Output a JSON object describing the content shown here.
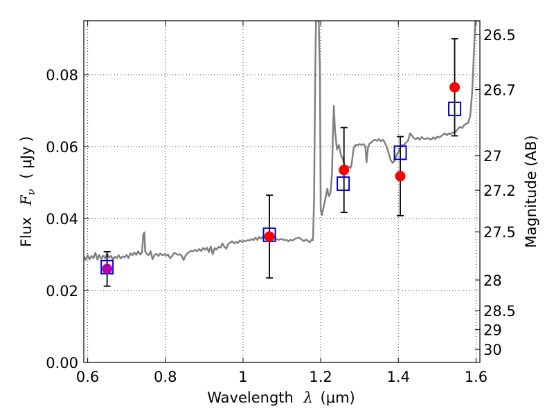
{
  "chart_data": {
    "type": "scatter",
    "title": "",
    "xlabel": {
      "prefix": "Wavelength",
      "symbol": "λ",
      "unit": "(μm)"
    },
    "ylabel": {
      "prefix": "Flux",
      "symbol": "F",
      "subscript": "ν",
      "unit": "( μJy )"
    },
    "y2label": "Magnitude (AB)",
    "xlim": [
      0.59,
      1.61
    ],
    "ylim": [
      0.0,
      0.095
    ],
    "x_ticks": [
      0.6,
      0.8,
      1.0,
      1.2,
      1.4,
      1.6
    ],
    "x_tick_labels": [
      "0.6",
      "0.8",
      "1",
      "1.2",
      "1.4",
      "1.6"
    ],
    "y_ticks": [
      0.0,
      0.02,
      0.04,
      0.06,
      0.08
    ],
    "y_tick_labels": [
      "0.00",
      "0.02",
      "0.04",
      "0.06",
      "0.08"
    ],
    "y2_ticks": [
      {
        "label": "26.5",
        "mag": 26.5
      },
      {
        "label": "26.7",
        "mag": 26.7
      },
      {
        "label": "27",
        "mag": 27.0
      },
      {
        "label": "27.2",
        "mag": 27.2
      },
      {
        "label": "27.5",
        "mag": 27.5
      },
      {
        "label": "28",
        "mag": 28.0
      },
      {
        "label": "28.5",
        "mag": 28.5
      },
      {
        "label": "29",
        "mag": 29.0
      },
      {
        "label": "30",
        "mag": 30.0
      }
    ],
    "grid": true,
    "model_spectrum": {
      "color": "#808080",
      "points": [
        [
          0.59,
          0.0295
        ],
        [
          0.595,
          0.0285
        ],
        [
          0.6,
          0.0298
        ],
        [
          0.605,
          0.0287
        ],
        [
          0.61,
          0.0296
        ],
        [
          0.615,
          0.029
        ],
        [
          0.62,
          0.0305
        ],
        [
          0.625,
          0.0286
        ],
        [
          0.63,
          0.0299
        ],
        [
          0.635,
          0.0288
        ],
        [
          0.64,
          0.0297
        ],
        [
          0.645,
          0.029
        ],
        [
          0.65,
          0.0302
        ],
        [
          0.655,
          0.0292
        ],
        [
          0.66,
          0.0296
        ],
        [
          0.665,
          0.0287
        ],
        [
          0.67,
          0.0294
        ],
        [
          0.675,
          0.029
        ],
        [
          0.68,
          0.0298
        ],
        [
          0.685,
          0.0289
        ],
        [
          0.69,
          0.0295
        ],
        [
          0.695,
          0.0292
        ],
        [
          0.7,
          0.0299
        ],
        [
          0.705,
          0.029
        ],
        [
          0.71,
          0.0303
        ],
        [
          0.715,
          0.0298
        ],
        [
          0.72,
          0.0306
        ],
        [
          0.725,
          0.0299
        ],
        [
          0.73,
          0.0309
        ],
        [
          0.735,
          0.03
        ],
        [
          0.74,
          0.0305
        ],
        [
          0.743,
          0.0355
        ],
        [
          0.746,
          0.0362
        ],
        [
          0.748,
          0.031
        ],
        [
          0.752,
          0.0302
        ],
        [
          0.757,
          0.0298
        ],
        [
          0.762,
          0.0309
        ],
        [
          0.767,
          0.0287
        ],
        [
          0.772,
          0.0299
        ],
        [
          0.777,
          0.0302
        ],
        [
          0.782,
          0.0296
        ],
        [
          0.787,
          0.0303
        ],
        [
          0.792,
          0.0298
        ],
        [
          0.797,
          0.0301
        ],
        [
          0.802,
          0.0297
        ],
        [
          0.807,
          0.03
        ],
        [
          0.812,
          0.029
        ],
        [
          0.817,
          0.0295
        ],
        [
          0.822,
          0.0304
        ],
        [
          0.827,
          0.0303
        ],
        [
          0.832,
          0.0299
        ],
        [
          0.837,
          0.0301
        ],
        [
          0.842,
          0.0296
        ],
        [
          0.847,
          0.0285
        ],
        [
          0.852,
          0.0297
        ],
        [
          0.857,
          0.0303
        ],
        [
          0.862,
          0.0307
        ],
        [
          0.867,
          0.0311
        ],
        [
          0.872,
          0.0309
        ],
        [
          0.877,
          0.0313
        ],
        [
          0.882,
          0.0309
        ],
        [
          0.887,
          0.0315
        ],
        [
          0.892,
          0.031
        ],
        [
          0.897,
          0.0318
        ],
        [
          0.902,
          0.0313
        ],
        [
          0.907,
          0.0319
        ],
        [
          0.912,
          0.0307
        ],
        [
          0.917,
          0.0322
        ],
        [
          0.922,
          0.0301
        ],
        [
          0.927,
          0.0318
        ],
        [
          0.932,
          0.0314
        ],
        [
          0.937,
          0.0321
        ],
        [
          0.942,
          0.0319
        ],
        [
          0.947,
          0.0331
        ],
        [
          0.952,
          0.0322
        ],
        [
          0.957,
          0.0316
        ],
        [
          0.962,
          0.0329
        ],
        [
          0.967,
          0.0333
        ],
        [
          0.972,
          0.0337
        ],
        [
          0.977,
          0.0331
        ],
        [
          0.982,
          0.0335
        ],
        [
          0.987,
          0.0332
        ],
        [
          0.992,
          0.0339
        ],
        [
          0.997,
          0.0336
        ],
        [
          1.002,
          0.0338
        ],
        [
          1.007,
          0.0337
        ],
        [
          1.012,
          0.034
        ],
        [
          1.017,
          0.0339
        ],
        [
          1.022,
          0.0343
        ],
        [
          1.027,
          0.034
        ],
        [
          1.032,
          0.0347
        ],
        [
          1.037,
          0.0341
        ],
        [
          1.042,
          0.0349
        ],
        [
          1.047,
          0.0344
        ],
        [
          1.052,
          0.035
        ],
        [
          1.057,
          0.0346
        ],
        [
          1.062,
          0.0352
        ],
        [
          1.067,
          0.0348
        ],
        [
          1.072,
          0.0353
        ],
        [
          1.077,
          0.0349
        ],
        [
          1.082,
          0.0345
        ],
        [
          1.087,
          0.0342
        ],
        [
          1.092,
          0.0341
        ],
        [
          1.097,
          0.0343
        ],
        [
          1.102,
          0.0342
        ],
        [
          1.107,
          0.034
        ],
        [
          1.112,
          0.0341
        ],
        [
          1.117,
          0.0337
        ],
        [
          1.122,
          0.0341
        ],
        [
          1.127,
          0.0339
        ],
        [
          1.132,
          0.0342
        ],
        [
          1.137,
          0.0345
        ],
        [
          1.142,
          0.0347
        ],
        [
          1.147,
          0.0345
        ],
        [
          1.152,
          0.0341
        ],
        [
          1.157,
          0.0337
        ],
        [
          1.162,
          0.0342
        ],
        [
          1.167,
          0.0338
        ],
        [
          1.172,
          0.0334
        ],
        [
          1.177,
          0.0342
        ],
        [
          1.18,
          0.034
        ],
        [
          1.183,
          0.045
        ],
        [
          1.186,
          0.08
        ],
        [
          1.188,
          0.095
        ],
        [
          1.19,
          0.095
        ],
        [
          1.193,
          0.095
        ],
        [
          1.195,
          0.095
        ],
        [
          1.198,
          0.08
        ],
        [
          1.2,
          0.0425
        ],
        [
          1.203,
          0.041
        ],
        [
          1.208,
          0.0435
        ],
        [
          1.213,
          0.046
        ],
        [
          1.217,
          0.0483
        ],
        [
          1.221,
          0.0462
        ],
        [
          1.225,
          0.047
        ],
        [
          1.229,
          0.052
        ],
        [
          1.232,
          0.0652
        ],
        [
          1.234,
          0.0713
        ],
        [
          1.237,
          0.0645
        ],
        [
          1.242,
          0.0592
        ],
        [
          1.247,
          0.0605
        ],
        [
          1.252,
          0.0578
        ],
        [
          1.257,
          0.0565
        ],
        [
          1.262,
          0.0547
        ],
        [
          1.267,
          0.0546
        ],
        [
          1.272,
          0.0544
        ],
        [
          1.277,
          0.0541
        ],
        [
          1.28,
          0.0553
        ],
        [
          1.285,
          0.0595
        ],
        [
          1.29,
          0.0605
        ],
        [
          1.295,
          0.0604
        ],
        [
          1.3,
          0.0607
        ],
        [
          1.305,
          0.0605
        ],
        [
          1.31,
          0.0607
        ],
        [
          1.315,
          0.0601
        ],
        [
          1.318,
          0.0556
        ],
        [
          1.322,
          0.0599
        ],
        [
          1.326,
          0.0609
        ],
        [
          1.33,
          0.0611
        ],
        [
          1.335,
          0.0617
        ],
        [
          1.34,
          0.0619
        ],
        [
          1.345,
          0.0616
        ],
        [
          1.35,
          0.0621
        ],
        [
          1.355,
          0.0615
        ],
        [
          1.36,
          0.0619
        ],
        [
          1.365,
          0.0612
        ],
        [
          1.37,
          0.0599
        ],
        [
          1.375,
          0.0583
        ],
        [
          1.38,
          0.0563
        ],
        [
          1.385,
          0.0555
        ],
        [
          1.39,
          0.056
        ],
        [
          1.395,
          0.0575
        ],
        [
          1.4,
          0.0585
        ],
        [
          1.405,
          0.0597
        ],
        [
          1.41,
          0.0604
        ],
        [
          1.415,
          0.0605
        ],
        [
          1.42,
          0.0611
        ],
        [
          1.425,
          0.0617
        ],
        [
          1.43,
          0.0637
        ],
        [
          1.435,
          0.0631
        ],
        [
          1.44,
          0.0623
        ],
        [
          1.445,
          0.0621
        ],
        [
          1.45,
          0.0625
        ],
        [
          1.455,
          0.0619
        ],
        [
          1.46,
          0.0627
        ],
        [
          1.465,
          0.0622
        ],
        [
          1.47,
          0.0621
        ],
        [
          1.475,
          0.0624
        ],
        [
          1.48,
          0.0621
        ],
        [
          1.485,
          0.062
        ],
        [
          1.49,
          0.0626
        ],
        [
          1.495,
          0.0621
        ],
        [
          1.5,
          0.0628
        ],
        [
          1.505,
          0.0625
        ],
        [
          1.51,
          0.0629
        ],
        [
          1.515,
          0.0633
        ],
        [
          1.52,
          0.0637
        ],
        [
          1.525,
          0.0632
        ],
        [
          1.53,
          0.0637
        ],
        [
          1.535,
          0.0635
        ],
        [
          1.54,
          0.0639
        ],
        [
          1.545,
          0.064
        ],
        [
          1.55,
          0.0644
        ],
        [
          1.555,
          0.0652
        ],
        [
          1.56,
          0.0655
        ],
        [
          1.565,
          0.0652
        ],
        [
          1.57,
          0.0661
        ],
        [
          1.575,
          0.0663
        ],
        [
          1.58,
          0.0667
        ],
        [
          1.585,
          0.0685
        ],
        [
          1.59,
          0.075
        ],
        [
          1.595,
          0.087
        ],
        [
          1.598,
          0.095
        ],
        [
          1.61,
          0.095
        ]
      ]
    },
    "series": [
      {
        "marker": "open-square",
        "color": "#0000cc",
        "points": [
          {
            "x": 0.65,
            "y": 0.0265
          },
          {
            "x": 1.068,
            "y": 0.0355
          },
          {
            "x": 1.258,
            "y": 0.0497
          },
          {
            "x": 1.405,
            "y": 0.0583
          },
          {
            "x": 1.545,
            "y": 0.0705
          }
        ]
      },
      {
        "marker": "filled-circle",
        "color": "#ff0000",
        "points": [
          {
            "x": 0.65,
            "y": 0.026,
            "err": 0.0048,
            "color": "#b000b0"
          },
          {
            "x": 1.068,
            "y": 0.035,
            "err": 0.0115
          },
          {
            "x": 1.26,
            "y": 0.0535,
            "err": 0.0118
          },
          {
            "x": 1.405,
            "y": 0.0518,
            "err": 0.011
          },
          {
            "x": 1.545,
            "y": 0.0765,
            "err": 0.0135
          }
        ]
      }
    ]
  }
}
